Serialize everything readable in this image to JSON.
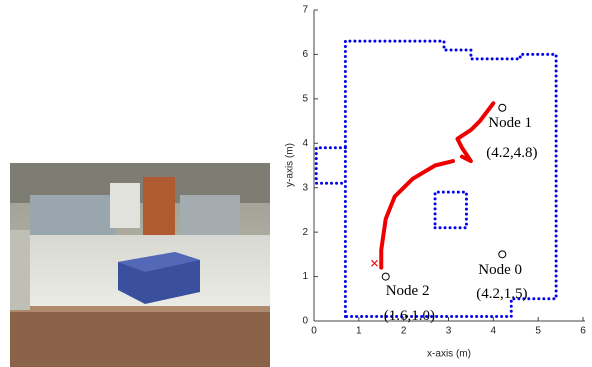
{
  "chart_data": {
    "type": "line",
    "x_label": "x-axis (m)",
    "y_label": "y-axis (m)",
    "xlim": [
      0,
      6
    ],
    "ylim": [
      0,
      7
    ],
    "xticks": [
      0,
      1,
      2,
      3,
      4,
      5,
      6
    ],
    "yticks": [
      0,
      1,
      2,
      3,
      4,
      5,
      6,
      7
    ],
    "series": [
      {
        "color": "#0000ee",
        "style": "dotted",
        "x": [
          0.7,
          0.7,
          2.9,
          2.9,
          3.5,
          3.5,
          4.6,
          4.6,
          5.4,
          5.4,
          4.4,
          4.4,
          0.7
        ],
        "values": [
          0.1,
          6.3,
          6.3,
          6.1,
          6.1,
          5.9,
          5.9,
          6.0,
          6.0,
          0.5,
          0.5,
          0.1,
          0.1
        ]
      },
      {
        "color": "#0000ee",
        "style": "dotted",
        "x": [
          0.7,
          0.05,
          0.05,
          0.7
        ],
        "values": [
          3.9,
          3.9,
          3.1,
          3.1
        ]
      },
      {
        "color": "#0000ee",
        "style": "dotted",
        "x": [
          2.7,
          3.4,
          3.4,
          2.7,
          2.7
        ],
        "values": [
          2.1,
          2.1,
          2.9,
          2.9,
          2.1
        ]
      },
      {
        "color": "#ee0000",
        "style": "solid",
        "x": [
          1.5,
          1.5,
          1.6,
          1.8,
          2.2,
          2.7,
          3.1,
          3.2,
          3.3,
          3.5,
          3.3,
          3.2,
          3.5,
          3.7,
          4.0
        ],
        "values": [
          1.2,
          1.6,
          2.3,
          2.8,
          3.2,
          3.5,
          3.6,
          null,
          3.7,
          3.6,
          3.9,
          4.1,
          4.3,
          4.5,
          4.9
        ]
      }
    ],
    "start": {
      "x": 1.35,
      "y": 1.3,
      "color": "#ee0000"
    },
    "nodes": [
      {
        "name": "Node 1",
        "coord_label": "(4.2,4.8)",
        "x": 4.2,
        "y": 4.8
      },
      {
        "name": "Node 0",
        "coord_label": "(4.2,1.5)",
        "x": 4.2,
        "y": 1.5
      },
      {
        "name": "Node 2",
        "coord_label": "(1.6,1.0)",
        "x": 1.6,
        "y": 1.0
      }
    ]
  }
}
